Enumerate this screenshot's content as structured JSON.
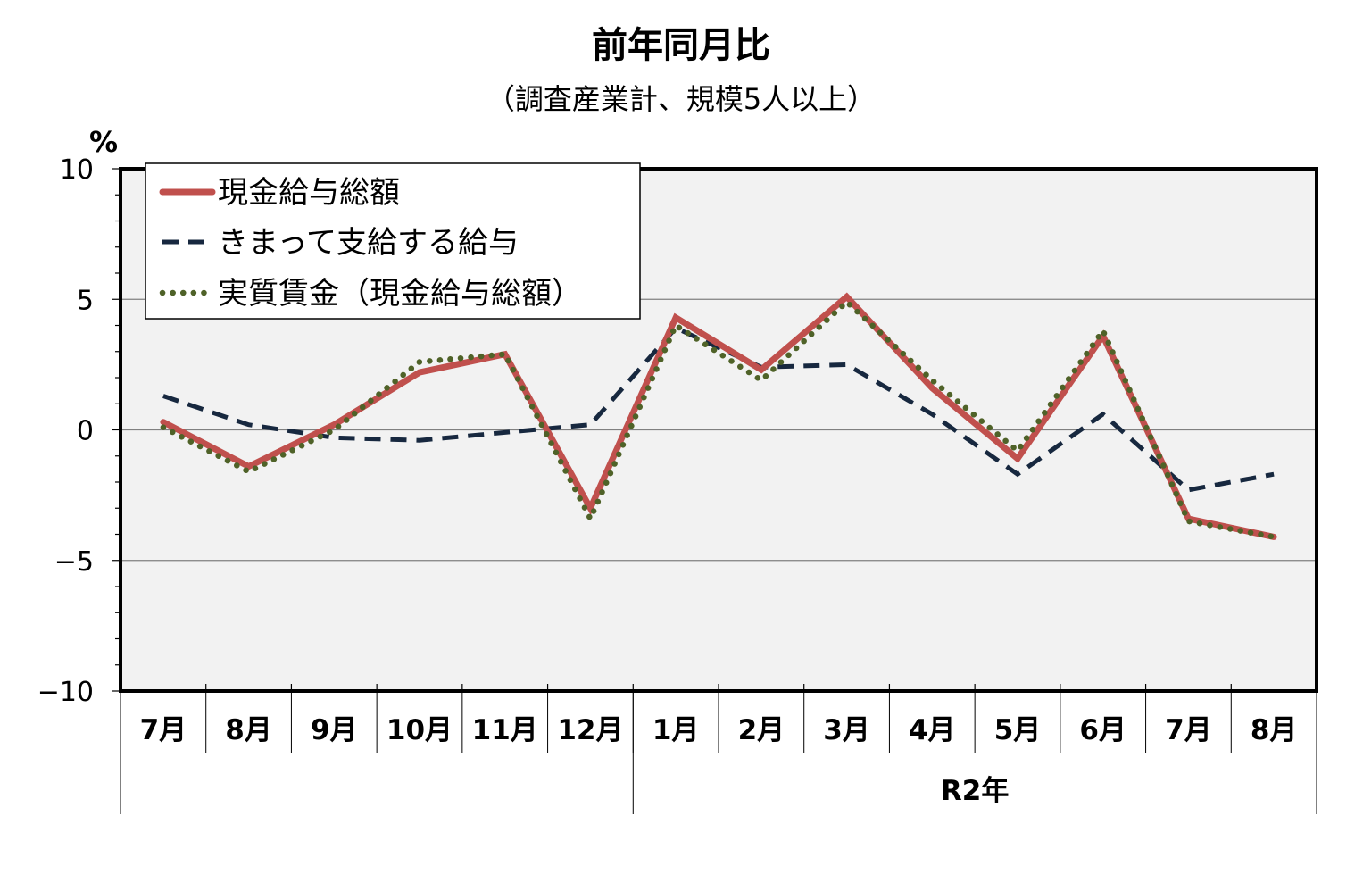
{
  "chart_data": {
    "type": "line",
    "title": "前年同月比",
    "subtitle": "（調査産業計、規模5人以上）",
    "ylabel": "%",
    "ylim": [
      -10,
      10
    ],
    "yticks": [
      10,
      5,
      0,
      -5,
      -10
    ],
    "ytick_labels": [
      "10",
      "5",
      "0",
      "−5",
      "−10"
    ],
    "categories": [
      "7月",
      "8月",
      "9月",
      "10月",
      "11月",
      "12月",
      "1月",
      "2月",
      "3月",
      "4月",
      "5月",
      "6月",
      "7月",
      "8月"
    ],
    "year_groups": [
      {
        "label": "",
        "start": 0,
        "end": 5
      },
      {
        "label": "R2年",
        "start": 6,
        "end": 13
      }
    ],
    "grid": true,
    "legend_position": "top-left",
    "series": [
      {
        "name": "現金給与総額",
        "style": "solid",
        "color": "#c0504d",
        "values": [
          0.3,
          -1.4,
          0.2,
          2.2,
          2.9,
          -3.0,
          4.3,
          2.3,
          5.1,
          1.6,
          -1.1,
          3.6,
          -3.4,
          -4.1
        ]
      },
      {
        "name": "きまって支給する給与",
        "style": "dashed",
        "color": "#17283f",
        "values": [
          1.3,
          0.2,
          -0.3,
          -0.4,
          -0.1,
          0.2,
          3.9,
          2.4,
          2.5,
          0.6,
          -1.7,
          0.6,
          -2.3,
          -1.7
        ]
      },
      {
        "name": "実質賃金（現金給与総額）",
        "style": "dotted",
        "color": "#4f6228",
        "values": [
          0.1,
          -1.6,
          0.0,
          2.6,
          2.9,
          -3.4,
          4.0,
          1.9,
          4.9,
          1.9,
          -0.8,
          3.8,
          -3.5,
          -4.1
        ]
      }
    ]
  }
}
